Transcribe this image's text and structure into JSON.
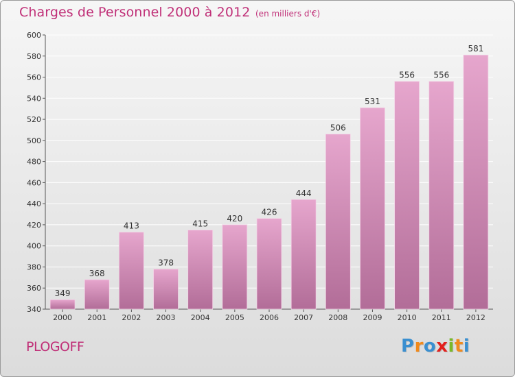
{
  "header": {
    "title": "Charges de Personnel 2000 à 2012",
    "subtitle": "(en milliers d'€)"
  },
  "footer": {
    "commune": "PLOGOFF",
    "logo_letters": [
      "P",
      "r",
      "o",
      "x",
      "i",
      "t",
      "i"
    ],
    "logo_colors": [
      "#3a8fd0",
      "#f08a1c",
      "#3a8fd0",
      "#e2201d",
      "#7ab828",
      "#f08a1c",
      "#3a8fd0"
    ]
  },
  "colors": {
    "bar_top": "#e6a6cd",
    "bar_bottom": "#b26d98",
    "title": "#c03078",
    "grid": "#ffffff",
    "axis_text": "#333333"
  },
  "chart_data": {
    "type": "bar",
    "title": "Charges de Personnel 2000 à 2012",
    "subtitle": "(en milliers d'€)",
    "xlabel": "",
    "ylabel": "",
    "categories": [
      "2000",
      "2001",
      "2002",
      "2003",
      "2004",
      "2005",
      "2006",
      "2007",
      "2008",
      "2009",
      "2010",
      "2011",
      "2012"
    ],
    "values": [
      349,
      368,
      413,
      378,
      415,
      420,
      426,
      444,
      506,
      531,
      556,
      556,
      581
    ],
    "ylim": [
      340,
      600
    ],
    "yticks": [
      340,
      360,
      380,
      400,
      420,
      440,
      460,
      480,
      500,
      520,
      540,
      560,
      580,
      600
    ],
    "grid": true
  }
}
